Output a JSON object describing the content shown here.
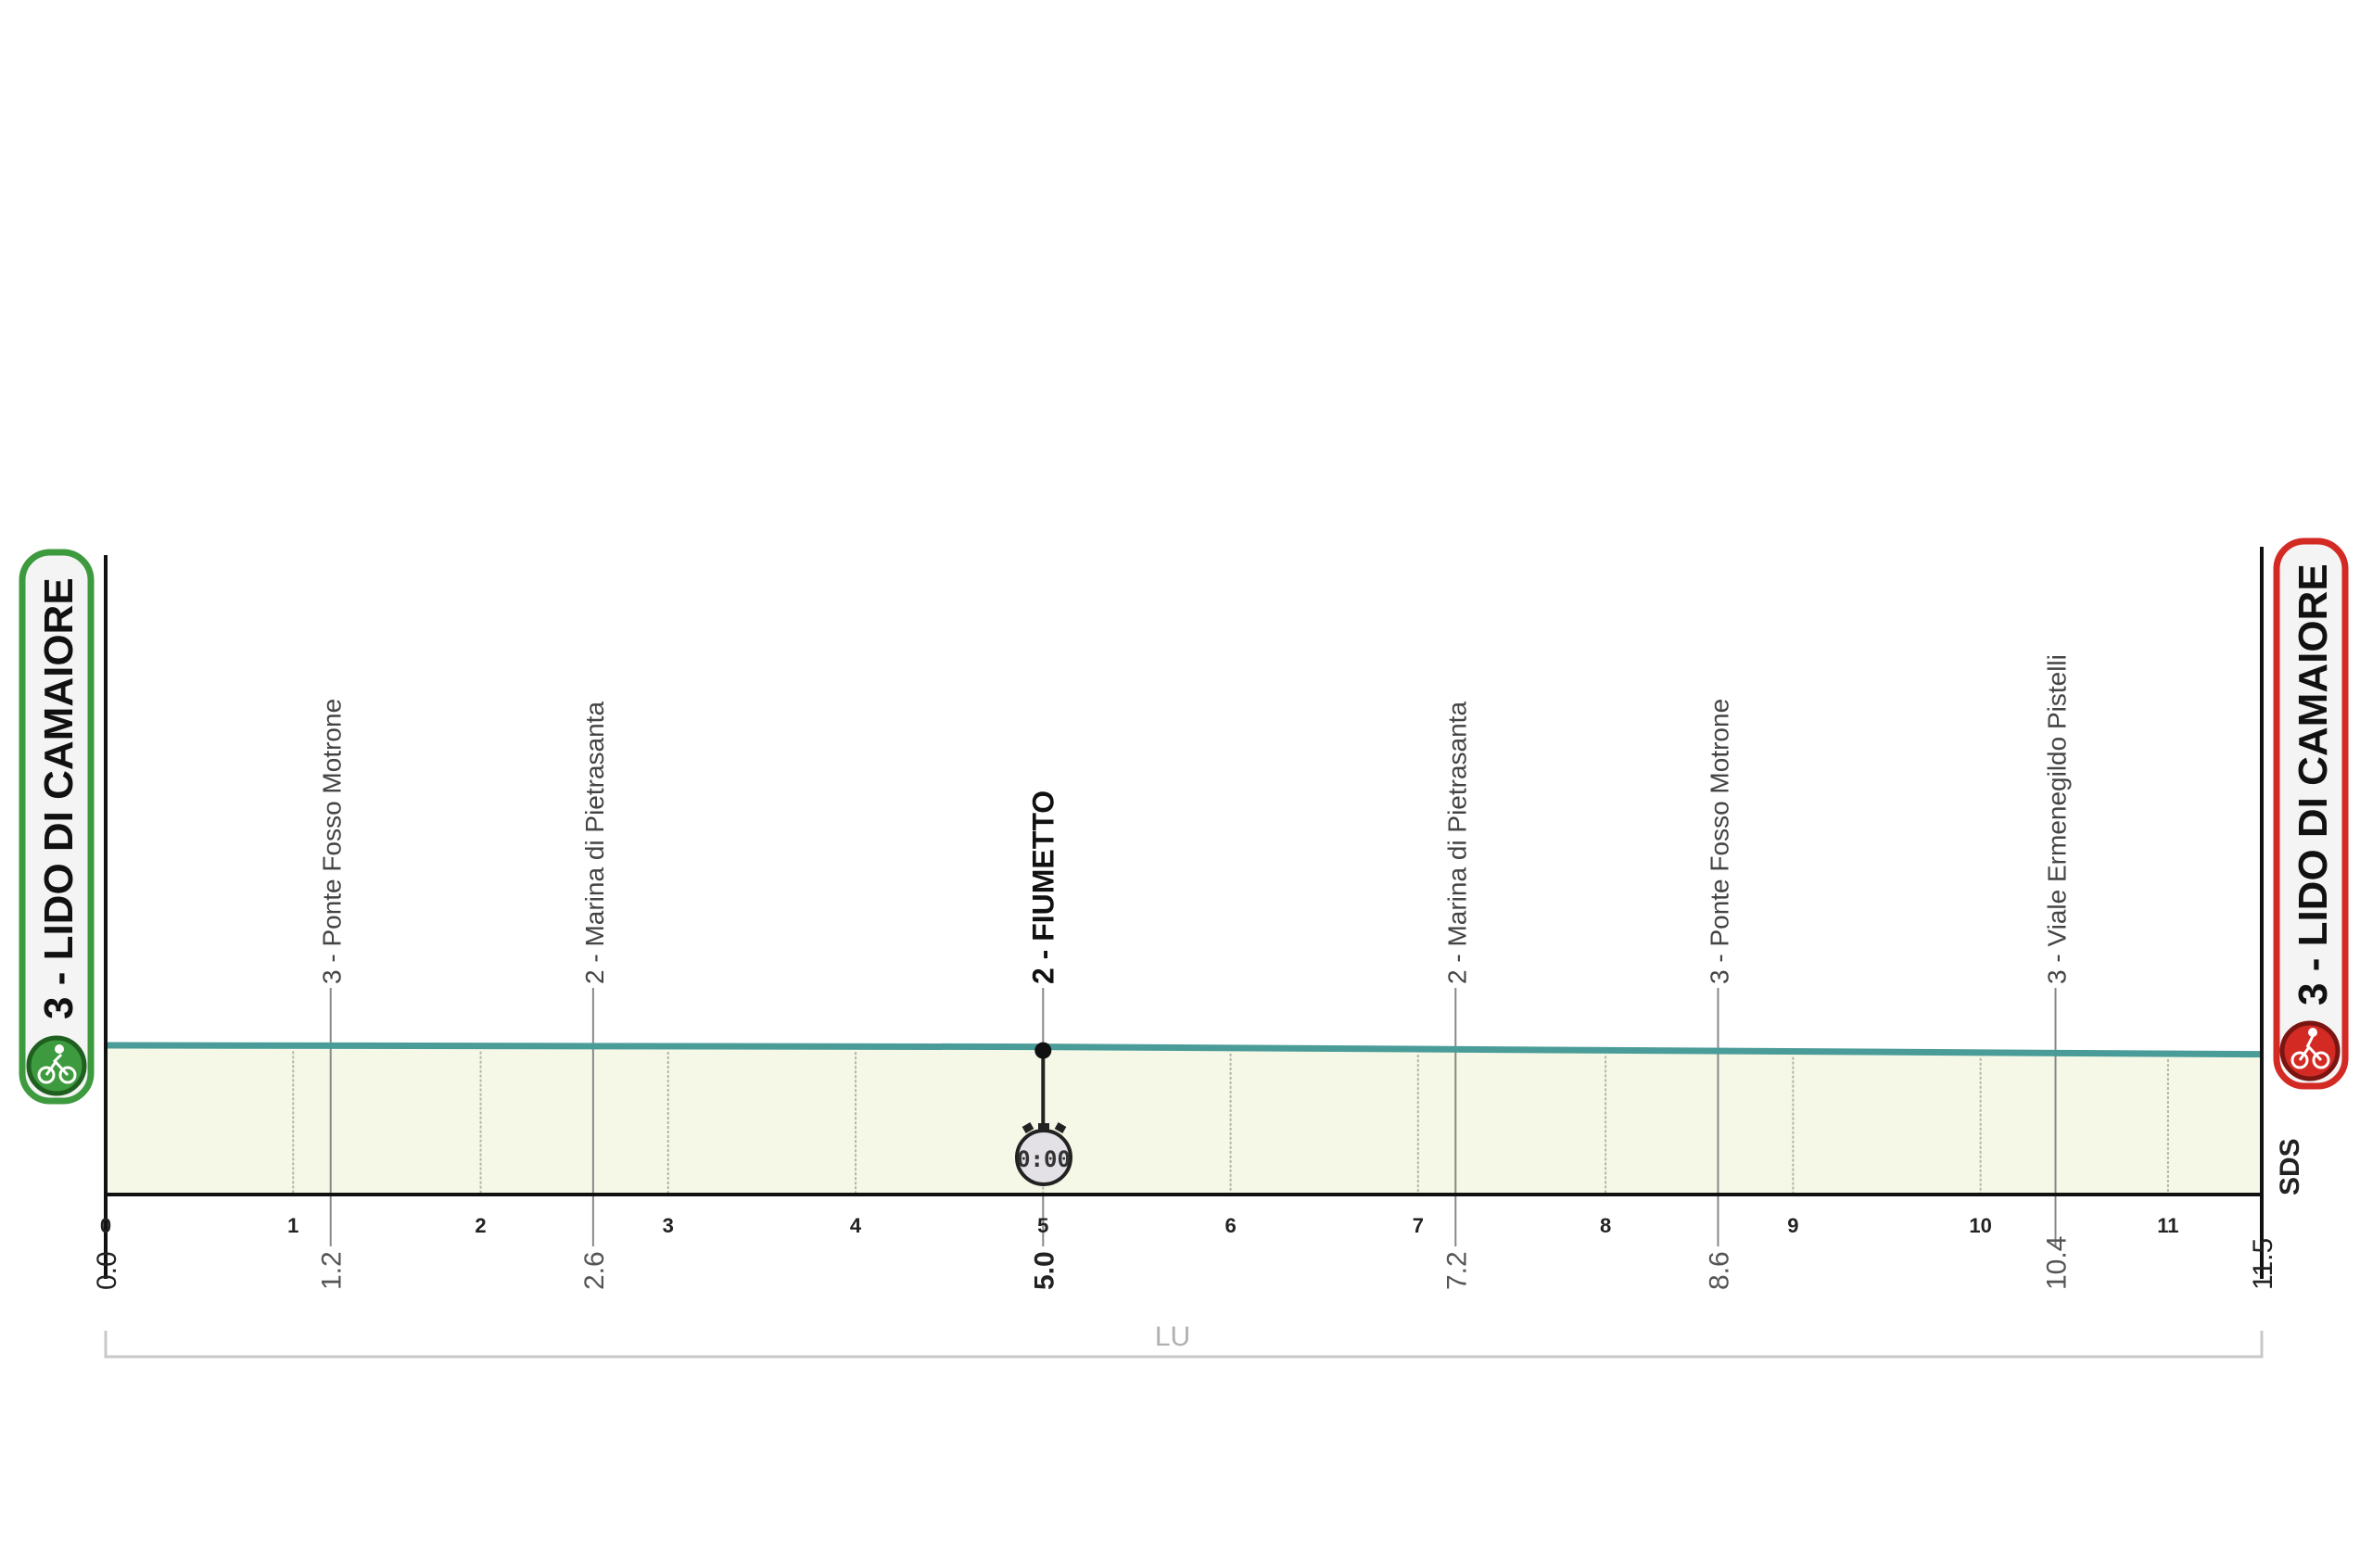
{
  "chart_data": {
    "type": "area",
    "xlim": [
      0,
      11.5
    ],
    "x_ticks": [
      0,
      1,
      2,
      3,
      4,
      5,
      6,
      7,
      8,
      9,
      10,
      11
    ],
    "distance_labels": [
      "0.0",
      "1.2",
      "2.6",
      "5.0",
      "7.2",
      "8.6",
      "10.4",
      "11.5"
    ],
    "distance_values": [
      0,
      1.2,
      2.6,
      5.0,
      7.2,
      8.6,
      10.4,
      11.5
    ],
    "profile": [
      {
        "km": 0,
        "level": 1.0
      },
      {
        "km": 5.0,
        "level": 0.99
      },
      {
        "km": 11.5,
        "level": 0.94
      }
    ],
    "points": [
      {
        "km": 1.2,
        "label": "3 - Ponte Fosso Motrone",
        "bold": false
      },
      {
        "km": 2.6,
        "label": "2 - Marina di Pietrasanta",
        "bold": false
      },
      {
        "km": 5.0,
        "label": "2 - FIUMETTO",
        "bold": true,
        "timing": "0:00"
      },
      {
        "km": 7.2,
        "label": "2 - Marina di Pietrasanta",
        "bold": false
      },
      {
        "km": 8.6,
        "label": "3 - Ponte Fosso Motrone",
        "bold": false
      },
      {
        "km": 10.4,
        "label": "3 - Viale Ermenegildo Pistelli",
        "bold": false
      }
    ],
    "grid": true,
    "colors": {
      "line": "#4a9c98",
      "fill": "#f5f8e6",
      "start": "#3e9a3e",
      "finish": "#d42a24"
    }
  },
  "start": {
    "label": "3 - LIDO DI CAMAIORE",
    "icon": "cyclist-icon"
  },
  "finish": {
    "label": "3 - LIDO DI CAMAIORE",
    "icon": "cyclist-icon"
  },
  "province": "LU",
  "brand": "SDS"
}
